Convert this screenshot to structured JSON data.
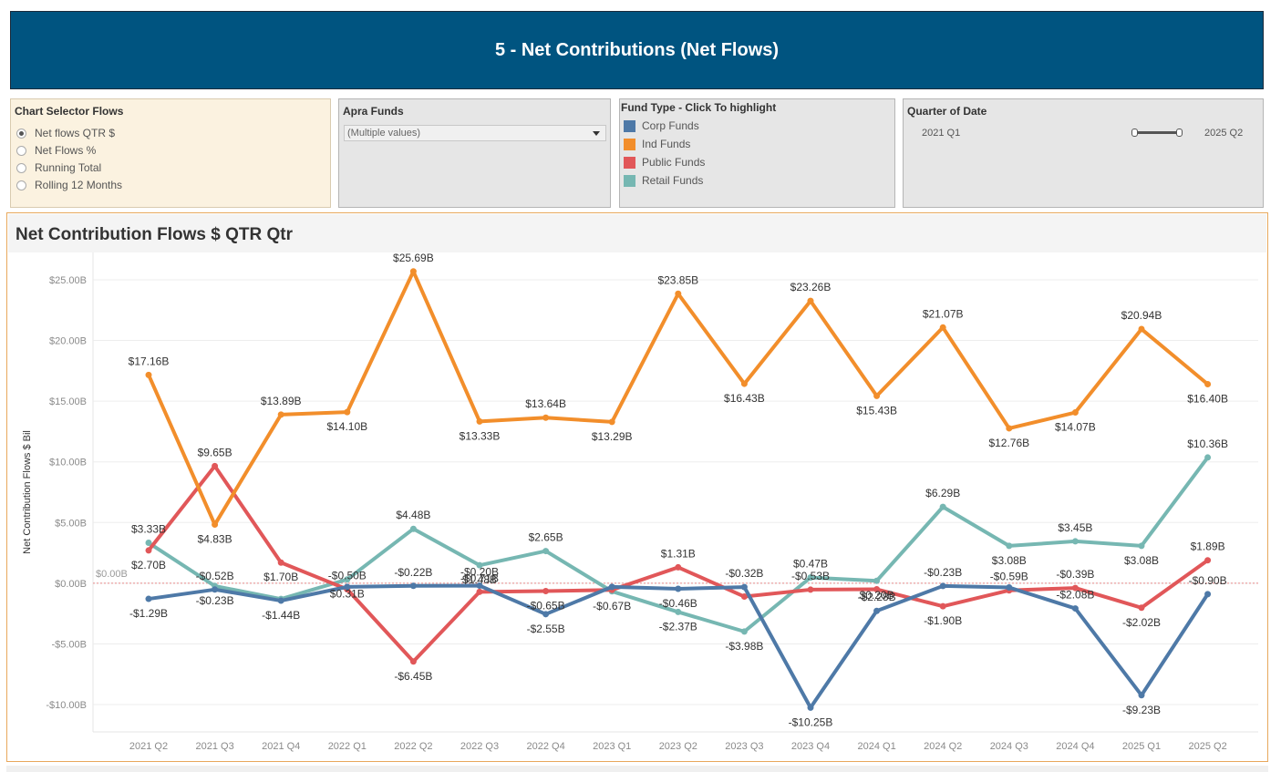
{
  "header": {
    "title": "5 - Net Contributions (Net Flows)"
  },
  "chart_selector": {
    "title": "Chart Selector Flows",
    "options": [
      {
        "label": "Net flows QTR $",
        "selected": true
      },
      {
        "label": "Net Flows %",
        "selected": false
      },
      {
        "label": "Running Total",
        "selected": false
      },
      {
        "label": "Rolling 12 Months",
        "selected": false
      }
    ]
  },
  "apra_funds": {
    "title": "Apra Funds",
    "value": "(Multiple values)"
  },
  "fund_type": {
    "title": "Fund Type - Click To highlight",
    "items": [
      {
        "label": "Corp Funds",
        "color": "#4e79a7"
      },
      {
        "label": "Ind Funds",
        "color": "#f28e2b"
      },
      {
        "label": "Public Funds",
        "color": "#e15759"
      },
      {
        "label": "Retail Funds",
        "color": "#76b7b2"
      }
    ]
  },
  "quarter_filter": {
    "title": "Quarter of Date",
    "start": "2021 Q1",
    "end": "2025 Q2"
  },
  "chart_data": {
    "type": "line",
    "title": "Net Contribution Flows $ QTR  Qtr",
    "xlabel": "",
    "ylabel": "Net Contribution Flows $ Bil",
    "ylim": [
      -12.25,
      27.25
    ],
    "yticks": [
      {
        "value": 25,
        "label": "$25.00B"
      },
      {
        "value": 20,
        "label": "$20.00B"
      },
      {
        "value": 15,
        "label": "$15.00B"
      },
      {
        "value": 10,
        "label": "$10.00B"
      },
      {
        "value": 5,
        "label": "$5.00B"
      },
      {
        "value": 0,
        "label": "$0.00B"
      },
      {
        "value": -5,
        "label": "-$5.00B"
      },
      {
        "value": -10,
        "label": "-$10.00B"
      }
    ],
    "reference_line": {
      "value": 0,
      "label": "$0.00B"
    },
    "categories": [
      "2021 Q2",
      "2021 Q3",
      "2021 Q4",
      "2022 Q1",
      "2022 Q2",
      "2022 Q3",
      "2022 Q4",
      "2023 Q1",
      "2023 Q2",
      "2023 Q3",
      "2023 Q4",
      "2024 Q1",
      "2024 Q2",
      "2024 Q3",
      "2024 Q4",
      "2025 Q1",
      "2025 Q2"
    ],
    "series": [
      {
        "name": "Retail Funds",
        "color": "#76b7b2",
        "values": [
          3.33,
          -0.23,
          -1.3,
          0.31,
          4.48,
          1.48,
          2.65,
          -0.67,
          -2.37,
          -3.98,
          0.47,
          0.2,
          6.29,
          3.08,
          3.45,
          3.08,
          10.36
        ],
        "labels": [
          "$3.33B",
          "-$0.23B",
          "",
          "$0.31B",
          "$4.48B",
          "$1.48B",
          "$2.65B",
          "-$0.67B",
          "-$2.37B",
          "-$3.98B",
          "$0.47B",
          "$0.20B",
          "$6.29B",
          "$3.08B",
          "$3.45B",
          "$3.08B",
          "$10.36B"
        ]
      },
      {
        "name": "Public Funds",
        "color": "#e15759",
        "values": [
          2.7,
          9.65,
          1.7,
          -0.5,
          -6.45,
          -0.71,
          -0.65,
          -0.55,
          1.31,
          -1.1,
          -0.53,
          -0.5,
          -1.9,
          -0.59,
          -0.39,
          -2.02,
          1.89
        ],
        "labels": [
          "$2.70B",
          "$9.65B",
          "$1.70B",
          "-$0.50B",
          "-$6.45B",
          "-$0.71B",
          "-$0.65B",
          "",
          "$1.31B",
          "",
          "-$0.53B",
          "",
          "-$1.90B",
          "-$0.59B",
          "-$0.39B",
          "-$2.02B",
          "$1.89B"
        ]
      },
      {
        "name": "Corp Funds",
        "color": "#4e79a7",
        "values": [
          -1.29,
          -0.52,
          -1.44,
          -0.3,
          -0.22,
          -0.2,
          -2.55,
          -0.3,
          -0.46,
          -0.32,
          -10.25,
          -2.28,
          -0.23,
          -0.35,
          -2.08,
          -9.23,
          -0.9
        ],
        "labels": [
          "-$1.29B",
          "-$0.52B",
          "-$1.44B",
          "",
          "-$0.22B",
          "-$0.20B",
          "-$2.55B",
          "",
          "-$0.46B",
          "-$0.32B",
          "-$10.25B",
          "-$2.28B",
          "-$0.23B",
          "",
          "-$2.08B",
          "-$9.23B",
          "-$0.90B"
        ]
      },
      {
        "name": "Ind Funds",
        "color": "#f28e2b",
        "values": [
          17.16,
          4.83,
          13.89,
          14.1,
          25.69,
          13.33,
          13.64,
          13.29,
          23.85,
          16.43,
          23.26,
          15.43,
          21.07,
          12.76,
          14.07,
          20.94,
          16.4
        ],
        "labels": [
          "$17.16B",
          "$4.83B",
          "$13.89B",
          "$14.10B",
          "$25.69B",
          "$13.33B",
          "$13.64B",
          "$13.29B",
          "$23.85B",
          "$16.43B",
          "$23.26B",
          "$15.43B",
          "$21.07B",
          "$12.76B",
          "$14.07B",
          "$20.94B",
          "$16.40B"
        ]
      }
    ]
  }
}
